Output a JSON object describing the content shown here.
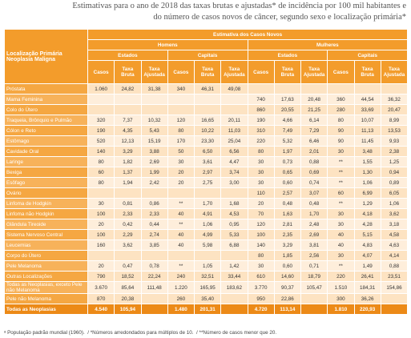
{
  "header": {
    "title_lines": [
      "Estimativas para o ano de 2018 das taxas brutas e ajustadas* de incidência por 100 mil habitantes e",
      "do número de casos novos de câncer, segundo sexo e localização primária*"
    ]
  },
  "table": {
    "row_header": "Localização Primária Neoplasia Maligna",
    "group": "Estimativa dos Casos Novos",
    "sexes": [
      "Homens",
      "Mulheres"
    ],
    "areas": [
      "Estados",
      "Capitais",
      "Estados",
      "Capitais"
    ],
    "columns": [
      "Casos",
      "Taxa Bruta",
      "Taxa Ajustada",
      "Casos",
      "Taxa Bruta",
      "Taxa Ajustada",
      "Casos",
      "Taxa Bruta",
      "Taxa Ajustada",
      "Casos",
      "Taxa Bruta",
      "Taxa Ajustada"
    ],
    "rows": [
      [
        "Próstata",
        "1.060",
        "24,82",
        "31,38",
        "340",
        "46,31",
        "49,08",
        null,
        null,
        null,
        null,
        null,
        null
      ],
      [
        "Mama Feminina",
        null,
        null,
        null,
        null,
        null,
        null,
        "740",
        "17,63",
        "20,48",
        "360",
        "44,54",
        "36,32"
      ],
      [
        "Colo do Útero",
        null,
        null,
        null,
        null,
        null,
        null,
        "860",
        "20,55",
        "21,25",
        "280",
        "33,69",
        "20,47"
      ],
      [
        "Traqueia, Brônquio e Pulmão",
        "320",
        "7,37",
        "10,32",
        "120",
        "16,65",
        "20,11",
        "190",
        "4,66",
        "6,14",
        "80",
        "10,07",
        "8,99"
      ],
      [
        "Cólon e Reto",
        "190",
        "4,35",
        "5,43",
        "80",
        "10,22",
        "11,03",
        "310",
        "7,49",
        "7,29",
        "90",
        "11,13",
        "13,53"
      ],
      [
        "Estômago",
        "520",
        "12,13",
        "15,19",
        "170",
        "23,30",
        "25,04",
        "220",
        "5,32",
        "6,46",
        "90",
        "11,45",
        "9,93"
      ],
      [
        "Cavidade Oral",
        "140",
        "3,29",
        "3,88",
        "50",
        "6,50",
        "6,56",
        "80",
        "1,97",
        "2,01",
        "30",
        "3,48",
        "2,38"
      ],
      [
        "Laringe",
        "80",
        "1,82",
        "2,69",
        "30",
        "3,61",
        "4,47",
        "30",
        "0,73",
        "0,88",
        "**",
        "1,55",
        "1,25"
      ],
      [
        "Bexiga",
        "60",
        "1,37",
        "1,99",
        "20",
        "2,97",
        "3,74",
        "30",
        "0,65",
        "0,69",
        "**",
        "1,30",
        "0,94"
      ],
      [
        "Esôfago",
        "80",
        "1,94",
        "2,42",
        "20",
        "2,75",
        "3,00",
        "30",
        "0,60",
        "0,74",
        "**",
        "1,06",
        "0,89"
      ],
      [
        "Ovário",
        null,
        null,
        null,
        null,
        null,
        null,
        "110",
        "2,57",
        "3,07",
        "60",
        "6,99",
        "6,05"
      ],
      [
        "Linfoma de Hodgkin",
        "30",
        "0,81",
        "0,86",
        "**",
        "1,70",
        "1,68",
        "20",
        "0,48",
        "0,48",
        "**",
        "1,29",
        "1,06"
      ],
      [
        "Linfoma não Hodgkin",
        "100",
        "2,33",
        "2,33",
        "40",
        "4,91",
        "4,53",
        "70",
        "1,63",
        "1,70",
        "30",
        "4,18",
        "3,62"
      ],
      [
        "Glândula Tireoide",
        "20",
        "0,42",
        "0,44",
        "**",
        "1,06",
        "0,95",
        "120",
        "2,81",
        "2,48",
        "30",
        "4,28",
        "3,18"
      ],
      [
        "Sistema Nervoso Central",
        "100",
        "2,29",
        "2,74",
        "40",
        "4,99",
        "5,33",
        "100",
        "2,35",
        "2,69",
        "40",
        "5,15",
        "4,58"
      ],
      [
        "Leucemias",
        "160",
        "3,62",
        "3,85",
        "40",
        "5,98",
        "6,88",
        "140",
        "3,29",
        "3,81",
        "40",
        "4,83",
        "4,63"
      ],
      [
        "Corpo do Útero",
        null,
        null,
        null,
        null,
        null,
        null,
        "80",
        "1,85",
        "2,56",
        "30",
        "4,07",
        "4,14"
      ],
      [
        "Pele Melanoma",
        "20",
        "0,47",
        "0,78",
        "**",
        "1,05",
        "1,42",
        "30",
        "0,60",
        "0,71",
        "**",
        "1,49",
        "0,88"
      ],
      [
        "Outras Localizações",
        "790",
        "18,52",
        "22,24",
        "240",
        "32,51",
        "33,44",
        "610",
        "14,60",
        "18,79",
        "220",
        "26,41",
        "23,51"
      ],
      [
        "Todas as Neoplasias, exceto Pele não Melanoma",
        "3.670",
        "85,64",
        "111,48",
        "1.220",
        "165,95",
        "183,62",
        "3.770",
        "90,37",
        "105,47",
        "1.510",
        "184,31",
        "154,86"
      ],
      [
        "Pele não Melanoma",
        "870",
        "20,38",
        null,
        "260",
        "35,40",
        null,
        "950",
        "22,86",
        null,
        "300",
        "36,26",
        null
      ],
      [
        "Todas as Neoplasias",
        "4.540",
        "105,94",
        null,
        "1.480",
        "201,31",
        null,
        "4.720",
        "113,14",
        null,
        "1.810",
        "220,93",
        null
      ]
    ]
  },
  "footnote": "ᵃ População padrão mundial (1960).  / *Números arredondados para múltiplos de 10.  / **Número de casos menor que 20."
}
